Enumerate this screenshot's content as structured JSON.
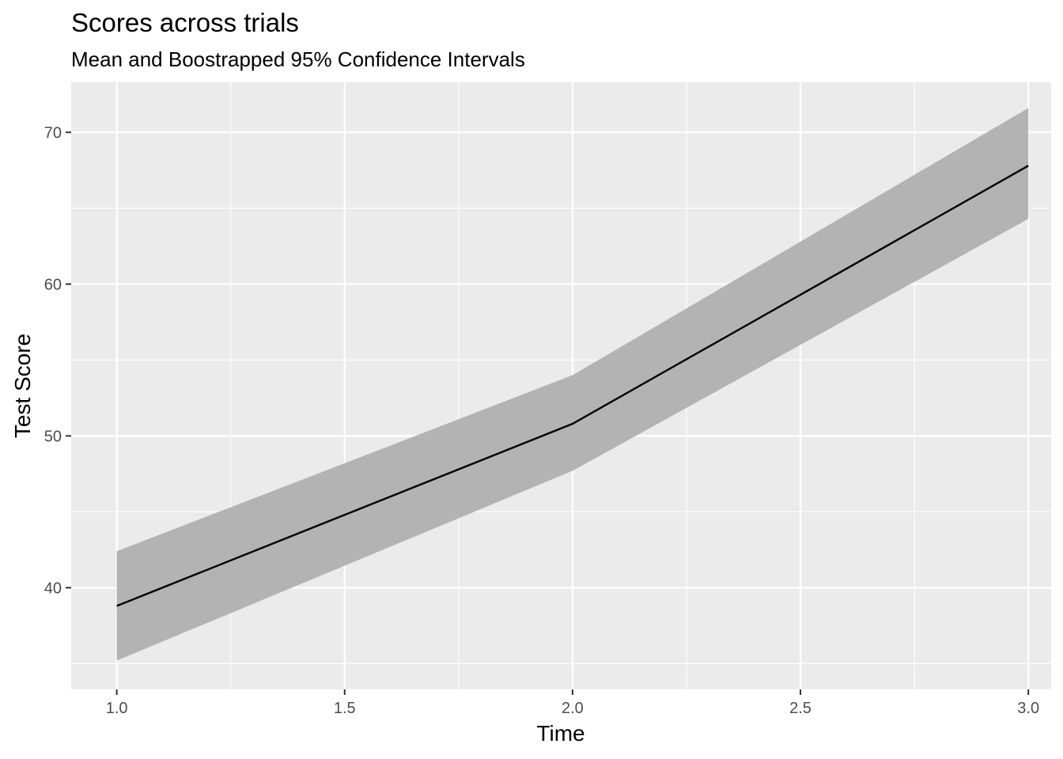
{
  "chart_data": {
    "type": "line",
    "title": "Scores across trials",
    "subtitle": "Mean and Boostrapped 95% Confidence Intervals",
    "xlabel": "Time",
    "ylabel": "Test Score",
    "xlim": [
      0.9,
      3.05
    ],
    "ylim": [
      33.3,
      73.3
    ],
    "x_ticks": [
      1.0,
      1.5,
      2.0,
      2.5,
      3.0
    ],
    "x_tick_labels": [
      "1.0",
      "1.5",
      "2.0",
      "2.5",
      "3.0"
    ],
    "y_ticks": [
      40,
      50,
      60,
      70
    ],
    "y_tick_labels": [
      "40",
      "50",
      "60",
      "70"
    ],
    "x_minor": [
      1.25,
      1.75,
      2.25,
      2.75
    ],
    "y_minor": [
      35,
      45,
      55,
      65
    ],
    "grid": true,
    "series": [
      {
        "x": [
          1.0,
          2.0,
          3.0
        ],
        "mean": [
          38.8,
          50.8,
          67.8
        ],
        "ci_low": [
          35.2,
          47.7,
          64.3
        ],
        "ci_high": [
          42.4,
          54.0,
          71.6
        ]
      }
    ],
    "colors": {
      "panel": "#ebebeb",
      "grid": "#ffffff",
      "ribbon": "#b3b3b3",
      "line": "#000000",
      "tick_text": "#4d4d4d"
    }
  }
}
